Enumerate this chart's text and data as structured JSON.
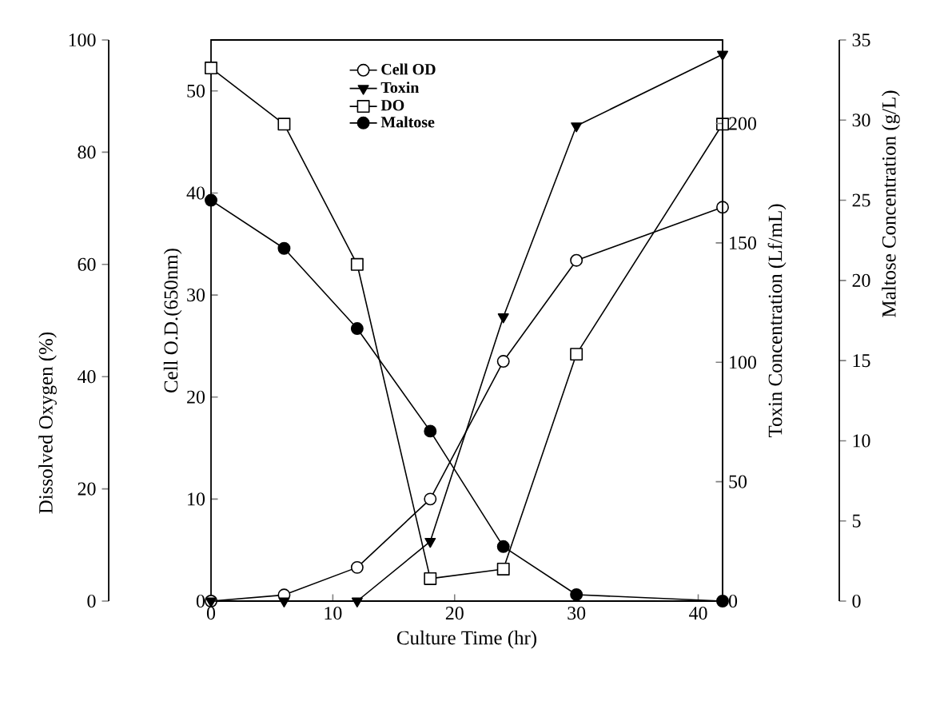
{
  "chart_data": [
    {
      "type": "line",
      "xlabel": "Culture Time (hr)",
      "ylabel": "Dissolved Oxygen (%)",
      "y2label": "Cell O.D.(650nm)",
      "y3label": "Toxin Concentration (Lf/mL)",
      "x": [
        0,
        6,
        12,
        18,
        24,
        30,
        42
      ],
      "xlim": [
        0,
        42
      ],
      "xticks": [
        0,
        10,
        20,
        30,
        40
      ],
      "ylim": [
        0,
        100
      ],
      "yticks": [
        0,
        20,
        40,
        60,
        80,
        100
      ],
      "y2lim": [
        0,
        55
      ],
      "y2ticks": [
        0,
        10,
        20,
        30,
        40,
        50
      ],
      "y3lim": [
        0,
        235
      ],
      "y3ticks": [
        0,
        50,
        100,
        150,
        200
      ],
      "legend": "top left",
      "line_style": "solid",
      "series": [
        {
          "name": "Cell OD",
          "color": "#000000",
          "axis": "y2",
          "marker": "circle",
          "values": [
            0,
            0.6,
            3.3,
            10,
            23.5,
            33.4,
            38.6
          ]
        },
        {
          "name": "Toxin",
          "color": "#000000",
          "axis": "y3",
          "marker": "triangle",
          "values": [
            0,
            0,
            0,
            25,
            119,
            199,
            229
          ]
        },
        {
          "name": "DO",
          "color": "#000000",
          "marker": "square",
          "values": [
            95,
            85,
            60,
            4,
            5.7,
            44,
            85
          ]
        }
      ]
    },
    {
      "type": "line",
      "ylabel": "Maltose Concentration (g/L)",
      "x": [
        0,
        6,
        12,
        18,
        24,
        30,
        42
      ],
      "xlim": [
        0,
        42
      ],
      "ylim": [
        0,
        35
      ],
      "yticks": [
        0,
        5,
        10,
        15,
        20,
        25,
        30,
        35
      ],
      "tick_labels": "y",
      "line_style": "solid",
      "legend": "top left",
      "series": [
        {
          "name": "Maltose",
          "color": "#000000",
          "marker": "circle",
          "values": [
            25,
            22,
            17,
            10.6,
            3.4,
            0.4,
            0
          ]
        }
      ]
    }
  ]
}
